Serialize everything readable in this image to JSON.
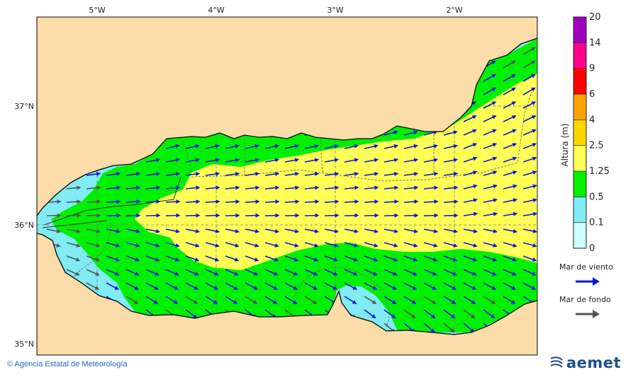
{
  "map": {
    "longitude_labels": [
      "5°W",
      "4°W",
      "3°W",
      "2°W"
    ],
    "latitude_labels": [
      "37°N",
      "36°N",
      "35°N"
    ],
    "colors": {
      "land": "#fcdca8",
      "border": "#6b6b6b",
      "grid": "#7a7a7a",
      "coast": "#111111"
    }
  },
  "colorbar": {
    "title": "Altura (m)",
    "levels": [
      "0",
      "0.1",
      "0.5",
      "1.25",
      "2.5",
      "4",
      "6",
      "9",
      "14",
      "20"
    ],
    "colors": [
      "#ccffff",
      "#80ecf4",
      "#00f000",
      "#ffff55",
      "#ffd700",
      "#ffa500",
      "#ff0000",
      "#ff0090",
      "#a000c0"
    ]
  },
  "legend": {
    "wind_sea_label": "Mar de viento",
    "wind_sea_color": "#0b18d8",
    "swell_label": "Mar de fondo",
    "swell_color": "#555555"
  },
  "footer": {
    "credit": "© Agencia Estatal de Meteorología",
    "brand": "aemet",
    "brand_icon": "aemet-logo-icon"
  }
}
